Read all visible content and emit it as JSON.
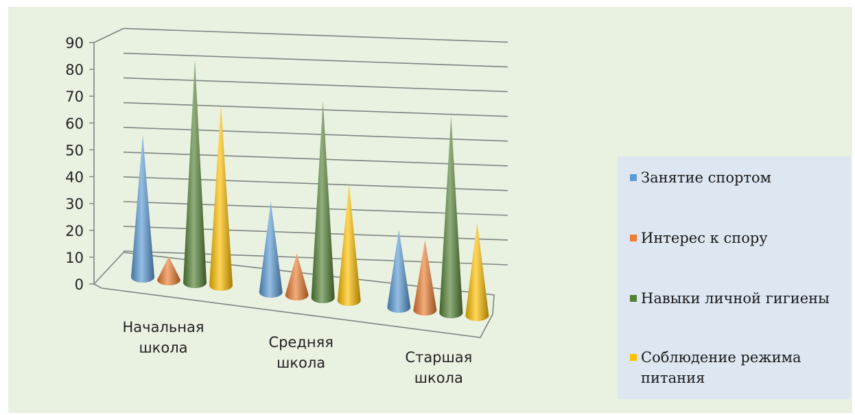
{
  "chart_data": {
    "type": "bar",
    "style": "3d-cone",
    "categories": [
      [
        "Начальная",
        "школа"
      ],
      [
        "Средняя",
        "школа"
      ],
      [
        "Старшая",
        "школа"
      ]
    ],
    "ylim": [
      0,
      90
    ],
    "yticks": [
      "0",
      "10",
      "20",
      "30",
      "40",
      "50",
      "60",
      "70",
      "80",
      "90"
    ],
    "grid": true,
    "legend_position": "right",
    "series": [
      {
        "name": "Занятие спортом",
        "color": "#5b9bd5",
        "values": [
          55,
          35,
          30
        ]
      },
      {
        "name": "Интерес к спору",
        "color": "#ed7d31",
        "values": [
          9,
          16,
          27
        ]
      },
      {
        "name": "Навыки личной гигиены",
        "color": "#548235",
        "values": [
          86,
          76,
          76
        ]
      },
      {
        "name": "Соблюдение режима питания",
        "color": "#ffc000",
        "values": [
          70,
          45,
          36
        ]
      }
    ]
  }
}
